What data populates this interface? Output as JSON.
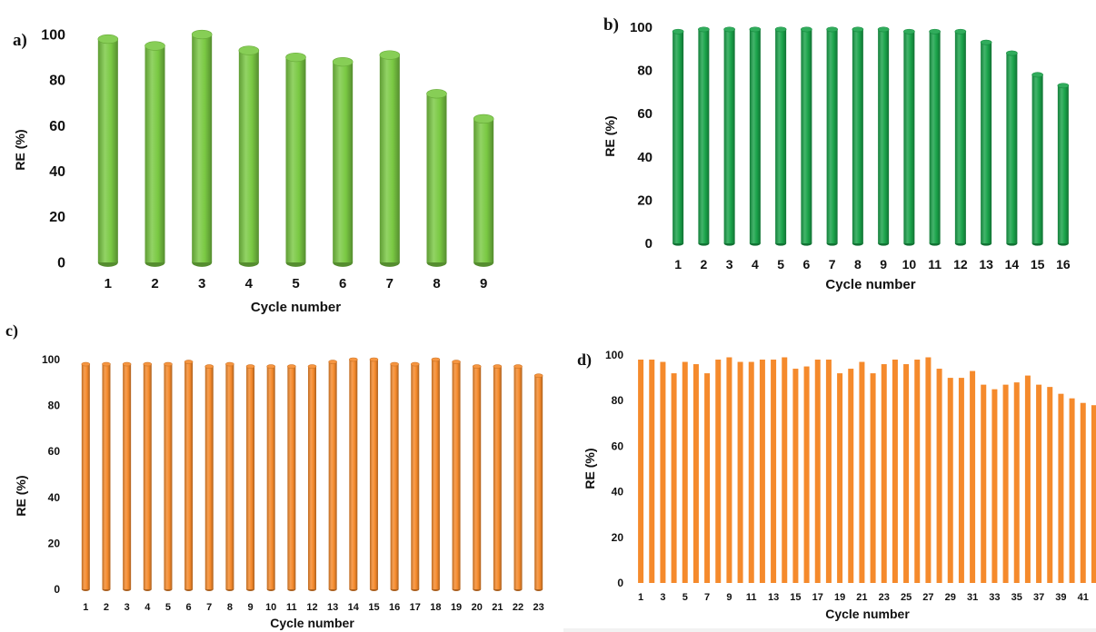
{
  "chart_data": [
    {
      "panel": "a)",
      "type": "bar",
      "categories": [
        "1",
        "2",
        "3",
        "4",
        "5",
        "6",
        "7",
        "8",
        "9"
      ],
      "series": [
        {
          "values": [
            98,
            95,
            100,
            93,
            90,
            88,
            91,
            74,
            63
          ]
        }
      ],
      "xlabel": "Cycle number",
      "ylabel": "RE (%)",
      "ylim": [
        0,
        100
      ],
      "yticks": [
        0,
        20,
        40,
        60,
        80,
        100
      ],
      "grid": false,
      "bar_color": "#7ac943",
      "bar_style": "3d-cylinder"
    },
    {
      "panel": "b)",
      "type": "bar",
      "categories": [
        "1",
        "2",
        "3",
        "4",
        "5",
        "6",
        "7",
        "8",
        "9",
        "10",
        "11",
        "12",
        "13",
        "14",
        "15",
        "16"
      ],
      "series": [
        {
          "values": [
            98,
            99,
            99,
            99,
            99,
            99,
            99,
            99,
            99,
            98,
            98,
            98,
            93,
            88,
            78,
            73
          ]
        }
      ],
      "xlabel": "Cycle number",
      "ylabel": "RE (%)",
      "ylim": [
        0,
        100
      ],
      "yticks": [
        0,
        20,
        40,
        60,
        80,
        100
      ],
      "grid": false,
      "bar_color": "#1aa34a",
      "bar_style": "3d-cylinder"
    },
    {
      "panel": "c)",
      "type": "bar",
      "categories": [
        "1",
        "2",
        "3",
        "4",
        "5",
        "6",
        "7",
        "8",
        "9",
        "10",
        "11",
        "12",
        "13",
        "14",
        "15",
        "16",
        "17",
        "18",
        "19",
        "20",
        "21",
        "22",
        "23"
      ],
      "series": [
        {
          "values": [
            98,
            98,
            98,
            98,
            98,
            99,
            97,
            98,
            97,
            97,
            97,
            97,
            99,
            100,
            100,
            98,
            98,
            100,
            99,
            97,
            97,
            97,
            93
          ]
        }
      ],
      "xlabel": "Cycle number",
      "ylabel": "RE (%)",
      "ylim": [
        0,
        100
      ],
      "yticks": [
        0,
        20,
        40,
        60,
        80,
        100
      ],
      "grid": false,
      "bar_color": "#f58a2c",
      "bar_style": "3d-cylinder"
    },
    {
      "panel": "d)",
      "type": "bar",
      "categories": [
        "1",
        "2",
        "3",
        "4",
        "5",
        "6",
        "7",
        "8",
        "9",
        "10",
        "11",
        "12",
        "13",
        "14",
        "15",
        "16",
        "17",
        "18",
        "19",
        "20",
        "21",
        "22",
        "23",
        "24",
        "25",
        "26",
        "27",
        "28",
        "29",
        "30",
        "31",
        "32",
        "33",
        "34",
        "35",
        "36",
        "37",
        "38",
        "39",
        "40",
        "41",
        "42"
      ],
      "tick_labels": [
        "1",
        "",
        "3",
        "",
        "5",
        "",
        "7",
        "",
        "9",
        "",
        "11",
        "",
        "13",
        "",
        "15",
        "",
        "17",
        "",
        "19",
        "",
        "21",
        "",
        "23",
        "",
        "25",
        "",
        "27",
        "",
        "29",
        "",
        "31",
        "",
        "33",
        "",
        "35",
        "",
        "37",
        "",
        "39",
        "",
        "41",
        ""
      ],
      "series": [
        {
          "values": [
            98,
            98,
            97,
            92,
            97,
            96,
            92,
            98,
            99,
            97,
            97,
            98,
            98,
            99,
            94,
            95,
            98,
            98,
            92,
            94,
            97,
            92,
            96,
            98,
            96,
            98,
            99,
            94,
            90,
            90,
            93,
            87,
            85,
            87,
            88,
            91,
            87,
            86,
            83,
            81,
            79,
            78
          ]
        }
      ],
      "xlabel": "Cycle number",
      "ylabel": "RE (%)",
      "ylim": [
        0,
        100
      ],
      "yticks": [
        0,
        20,
        40,
        60,
        80,
        100
      ],
      "grid": false,
      "bar_color": "#f58a2c",
      "bar_style": "flat"
    }
  ]
}
